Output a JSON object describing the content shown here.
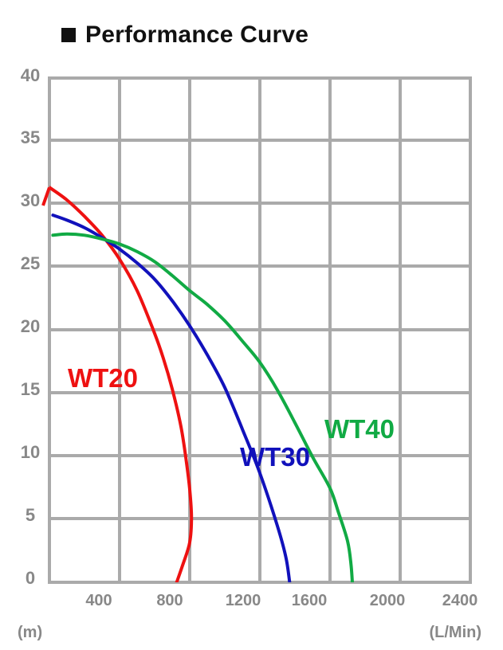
{
  "header": {
    "title": "Performance Curve"
  },
  "chart_data": {
    "type": "line",
    "title": "Performance Curve",
    "xlabel": "(L/Min)",
    "ylabel": "(m)",
    "xlim": [
      0,
      2400
    ],
    "ylim": [
      0,
      40
    ],
    "grid": true,
    "x_ticks": [
      400,
      800,
      1200,
      1600,
      2000,
      2400
    ],
    "x_tick_labels": [
      "400",
      "800",
      "1200",
      "1600",
      "2000",
      "2400"
    ],
    "y_ticks": [
      0,
      5,
      10,
      15,
      20,
      25,
      30,
      35,
      40
    ],
    "y_tick_labels": [
      "0",
      "5",
      "10",
      "15",
      "20",
      "25",
      "30",
      "35",
      "40"
    ],
    "series": [
      {
        "name": "WT20",
        "color": "#ee1111",
        "points": [
          [
            0,
            31.5
          ],
          [
            100,
            30.5
          ],
          [
            200,
            29.2
          ],
          [
            300,
            27.7
          ],
          [
            400,
            25.8
          ],
          [
            500,
            23.3
          ],
          [
            600,
            19.9
          ],
          [
            650,
            17.9
          ],
          [
            700,
            15.5
          ],
          [
            750,
            12.5
          ],
          [
            780,
            9.8
          ],
          [
            800,
            7.5
          ],
          [
            810,
            5.3
          ],
          [
            800,
            3.3
          ],
          [
            760,
            1.5
          ],
          [
            710,
            -0.5
          ]
        ]
      },
      {
        "name": "WT30",
        "color": "#1111bb",
        "points": [
          [
            20,
            29.3
          ],
          [
            100,
            28.9
          ],
          [
            200,
            28.3
          ],
          [
            300,
            27.5
          ],
          [
            400,
            26.6
          ],
          [
            500,
            25.5
          ],
          [
            600,
            24.2
          ],
          [
            700,
            22.5
          ],
          [
            800,
            20.5
          ],
          [
            900,
            18.2
          ],
          [
            1000,
            15.6
          ],
          [
            1100,
            12.3
          ],
          [
            1200,
            8.8
          ],
          [
            1300,
            4.6
          ],
          [
            1350,
            2.0
          ],
          [
            1375,
            -0.5
          ]
        ]
      },
      {
        "name": "WT40",
        "color": "#11aa44",
        "points": [
          [
            20,
            27.7
          ],
          [
            100,
            27.8
          ],
          [
            200,
            27.7
          ],
          [
            300,
            27.4
          ],
          [
            400,
            27.0
          ],
          [
            500,
            26.4
          ],
          [
            600,
            25.6
          ],
          [
            700,
            24.5
          ],
          [
            800,
            23.3
          ],
          [
            900,
            22.2
          ],
          [
            1000,
            20.9
          ],
          [
            1100,
            19.3
          ],
          [
            1200,
            17.6
          ],
          [
            1300,
            15.4
          ],
          [
            1400,
            12.8
          ],
          [
            1500,
            10.1
          ],
          [
            1600,
            7.6
          ],
          [
            1650,
            5.6
          ],
          [
            1700,
            3.4
          ],
          [
            1720,
            1.5
          ],
          [
            1730,
            -0.5
          ]
        ]
      }
    ],
    "annotations": [
      {
        "text": "WT20",
        "series": "WT20",
        "x": 0.23,
        "y": 18.2
      },
      {
        "text": "WT30",
        "series": "WT30",
        "x": 1070,
        "y": 9.6
      },
      {
        "text": "WT40",
        "series": "WT40",
        "x": 1570,
        "y": 11.3
      }
    ]
  }
}
